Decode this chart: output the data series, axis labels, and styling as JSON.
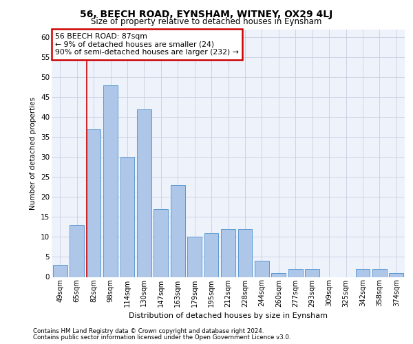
{
  "title": "56, BEECH ROAD, EYNSHAM, WITNEY, OX29 4LJ",
  "subtitle": "Size of property relative to detached houses in Eynsham",
  "xlabel": "Distribution of detached houses by size in Eynsham",
  "ylabel": "Number of detached properties",
  "categories": [
    "49sqm",
    "65sqm",
    "82sqm",
    "98sqm",
    "114sqm",
    "130sqm",
    "147sqm",
    "163sqm",
    "179sqm",
    "195sqm",
    "212sqm",
    "228sqm",
    "244sqm",
    "260sqm",
    "277sqm",
    "293sqm",
    "309sqm",
    "325sqm",
    "342sqm",
    "358sqm",
    "374sqm"
  ],
  "values": [
    3,
    13,
    37,
    48,
    30,
    42,
    17,
    23,
    10,
    11,
    12,
    12,
    4,
    1,
    2,
    2,
    0,
    0,
    2,
    2,
    1
  ],
  "bar_color": "#aec6e8",
  "bar_edgecolor": "#5b9bd5",
  "vline_x_index": 1.575,
  "annotation_lines": [
    "56 BEECH ROAD: 87sqm",
    "← 9% of detached houses are smaller (24)",
    "90% of semi-detached houses are larger (232) →"
  ],
  "annotation_box_color": "#ffffff",
  "annotation_box_edgecolor": "#cc0000",
  "vline_color": "#cc0000",
  "background_color": "#eef2fb",
  "grid_color": "#c8cfe0",
  "ylim": [
    0,
    62
  ],
  "yticks": [
    0,
    5,
    10,
    15,
    20,
    25,
    30,
    35,
    40,
    45,
    50,
    55,
    60
  ],
  "footer_line1": "Contains HM Land Registry data © Crown copyright and database right 2024.",
  "footer_line2": "Contains public sector information licensed under the Open Government Licence v3.0."
}
